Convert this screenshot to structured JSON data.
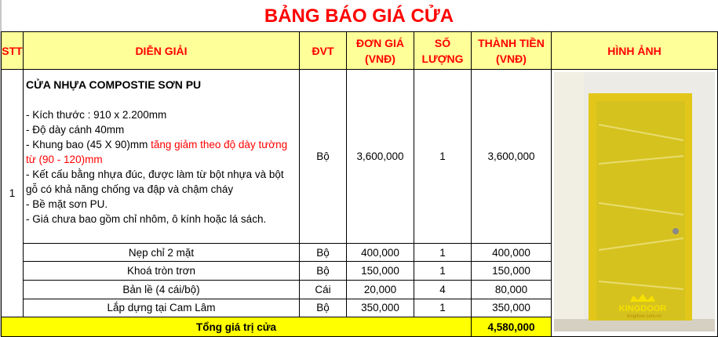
{
  "title": "BẢNG BÁO GIÁ CỬA",
  "headers": {
    "stt": "STT",
    "desc": "DIỄN GIẢI",
    "unit": "ĐVT",
    "price_l1": "ĐƠN GIÁ",
    "price_l2": "(VNĐ)",
    "qty_l1": "SỐ",
    "qty_l2": "LƯỢNG",
    "total_l1": "THÀNH TIỀN",
    "total_l2": "(VNĐ)",
    "image": "HÌNH ẢNH"
  },
  "main_item": {
    "stt": "1",
    "name": "CỬA NHỰA COMPOSTIE SƠN PU",
    "specs": {
      "size": "- Kích thước : 910 x 2.200mm",
      "thickness": "- Độ dày cánh 40mm",
      "frame": "- Khung bao (45 X 90)mm ",
      "frame_note": "tăng giảm theo độ dày tường từ (90 - 120)mm",
      "structure": "- Kết cấu bằng nhựa đúc, được làm từ bột nhựa và bột gỗ có khả năng chống va đập và chậm cháy",
      "surface": "- Bề mặt sơn PU.",
      "exclusion": "- Giá chưa bao gồm chỉ nhôm, ô kính hoặc lá sách."
    },
    "unit": "Bộ",
    "price": "3,600,000",
    "qty": "1",
    "total": "3,600,000"
  },
  "sub_items": [
    {
      "name": "Nẹp chỉ 2 mặt",
      "unit": "Bộ",
      "price": "400,000",
      "qty": "1",
      "total": "400,000"
    },
    {
      "name": "Khoá tròn trơn",
      "unit": "Bộ",
      "price": "150,000",
      "qty": "1",
      "total": "150,000"
    },
    {
      "name": "Bản lề (4 cái/bộ)",
      "unit": "Cái",
      "price": "20,000",
      "qty": "4",
      "total": "80,000"
    },
    {
      "name": "Lắp dựng tại Cam Lâm",
      "unit": "Bộ",
      "price": "350,000",
      "qty": "1",
      "total": "350,000"
    }
  ],
  "summary": {
    "label": "Tổng giá trị cửa",
    "total": "4,580,000"
  },
  "photo": {
    "watermark": "KINGDOOR",
    "watermark_url": "kingdoor.com.vn"
  },
  "colors": {
    "title": "#ff0000",
    "header_bg": "#ffff99",
    "total_bg": "#ffff00",
    "door": "#d8c21a"
  }
}
